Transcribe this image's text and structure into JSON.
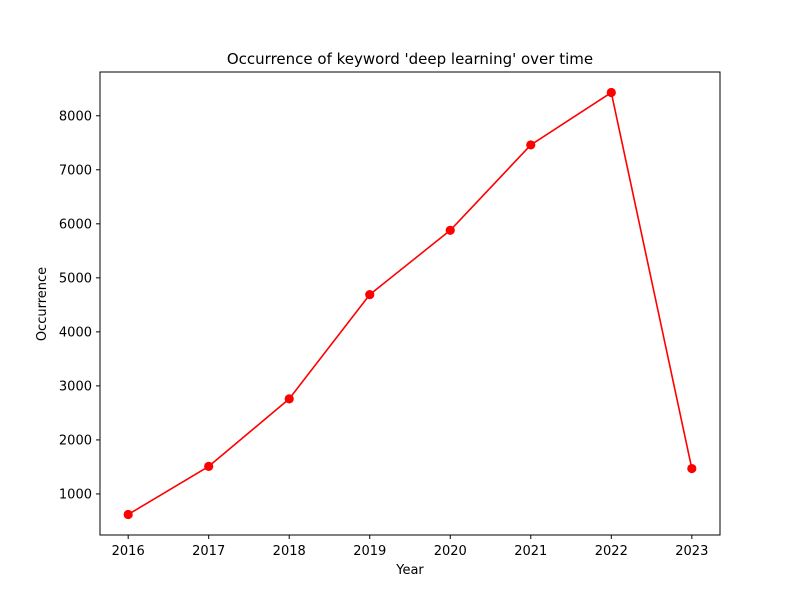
{
  "chart_data": {
    "type": "line",
    "title": "Occurrence of keyword 'deep learning' over time",
    "xlabel": "Year",
    "ylabel": "Occurrence",
    "x": [
      "2016",
      "2017",
      "2018",
      "2019",
      "2020",
      "2021",
      "2022",
      "2023"
    ],
    "series": [
      {
        "values": [
          620,
          1510,
          2760,
          4690,
          5880,
          7460,
          8430,
          1470
        ],
        "color": "#ff0000",
        "marker": "circle"
      }
    ],
    "yticks": [
      "1000",
      "2000",
      "3000",
      "4000",
      "5000",
      "6000",
      "7000",
      "8000"
    ],
    "ylim": [
      240,
      8810
    ],
    "xlim": [
      2015.65,
      2023.35
    ],
    "grid": false
  }
}
